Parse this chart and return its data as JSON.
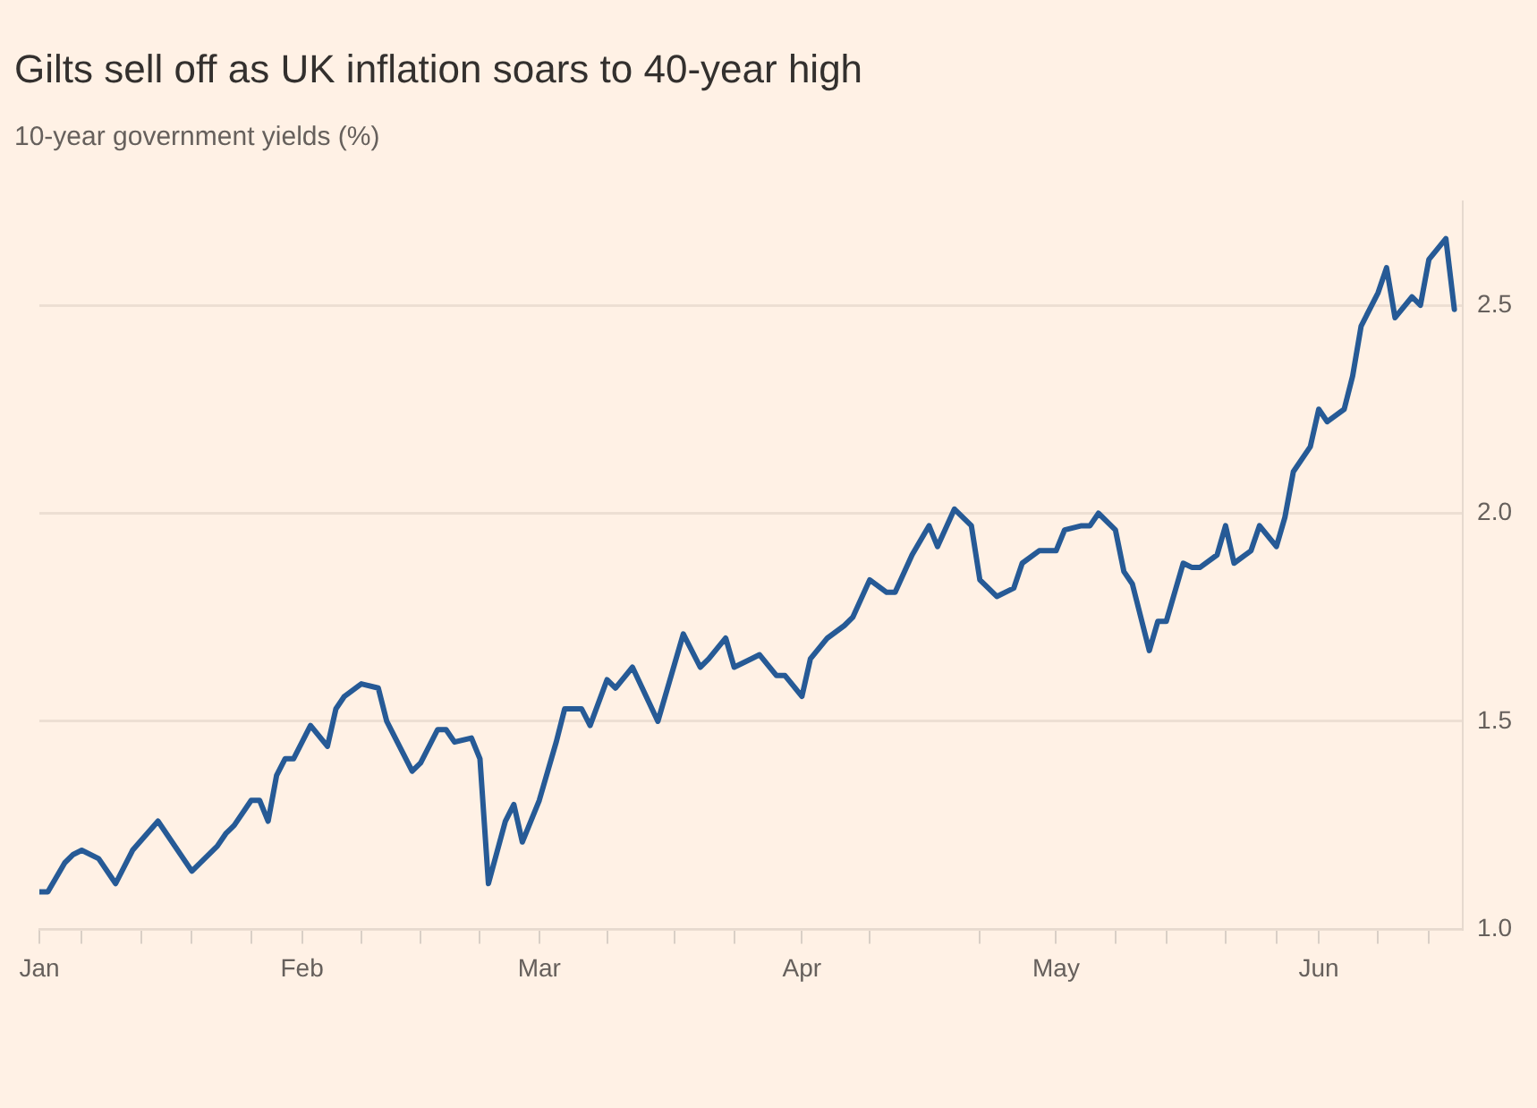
{
  "chart_data": {
    "type": "line",
    "title": "Gilts sell off as UK inflation soars to 40-year high",
    "subtitle": "10-year government yields (%)",
    "xlim": [
      "--01-01",
      "--06-18"
    ],
    "xticks": [
      {
        "value": "--01-01",
        "label": "Jan"
      },
      {
        "value": "--01-06",
        "label": null
      },
      {
        "value": "--01-13",
        "label": null
      },
      {
        "value": "--01-19",
        "label": null
      },
      {
        "value": "--01-26",
        "label": null
      },
      {
        "value": "--02-01",
        "label": "Feb"
      },
      {
        "value": "--02-08",
        "label": null
      },
      {
        "value": "--02-15",
        "label": null
      },
      {
        "value": "--02-22",
        "label": null
      },
      {
        "value": "--03-01",
        "label": "Mar"
      },
      {
        "value": "--03-09",
        "label": null
      },
      {
        "value": "--03-17",
        "label": null
      },
      {
        "value": "--03-24",
        "label": null
      },
      {
        "value": "--04-01",
        "label": "Apr"
      },
      {
        "value": "--04-09",
        "label": null
      },
      {
        "value": "--04-22",
        "label": null
      },
      {
        "value": "--05-01",
        "label": "May"
      },
      {
        "value": "--05-08",
        "label": null
      },
      {
        "value": "--05-14",
        "label": null
      },
      {
        "value": "--05-21",
        "label": null
      },
      {
        "value": "--05-27",
        "label": null
      },
      {
        "value": "--06-01",
        "label": "Jun"
      },
      {
        "value": "--06-08",
        "label": null
      },
      {
        "value": "--06-14",
        "label": null
      }
    ],
    "yticks": [
      {
        "value": 1.0,
        "label": "1.0"
      },
      {
        "value": 1.5,
        "label": "1.5"
      },
      {
        "value": 2.0,
        "label": "2.0"
      },
      {
        "value": 2.5,
        "label": "2.5"
      }
    ],
    "ylim": [
      1.0,
      2.75
    ],
    "grid": "y",
    "marker": "none",
    "line_style": "solid",
    "x": [
      "--01-01",
      "--01-02",
      "--01-04",
      "--01-05",
      "--01-06",
      "--01-08",
      "--01-10",
      "--01-12",
      "--01-15",
      "--01-16",
      "--01-19",
      "--01-22",
      "--01-23",
      "--01-24",
      "--01-26",
      "--01-27",
      "--01-28",
      "--01-29",
      "--01-30",
      "--01-31",
      "--02-02",
      "--02-04",
      "--02-05",
      "--02-06",
      "--02-08",
      "--02-10",
      "--02-11",
      "--02-14",
      "--02-15",
      "--02-17",
      "--02-18",
      "--02-19",
      "--02-21",
      "--02-22",
      "--02-23",
      "--02-25",
      "--02-26",
      "--02-27",
      "--03-01",
      "--03-03",
      "--03-04",
      "--03-06",
      "--03-07",
      "--03-09",
      "--03-10",
      "--03-12",
      "--03-15",
      "--03-17",
      "--03-18",
      "--03-20",
      "--03-21",
      "--03-23",
      "--03-24",
      "--03-26",
      "--03-27",
      "--03-29",
      "--03-30",
      "--04-01",
      "--04-02",
      "--04-04",
      "--04-06",
      "--04-07",
      "--04-09",
      "--04-11",
      "--04-12",
      "--04-14",
      "--04-16",
      "--04-17",
      "--04-19",
      "--04-21",
      "--04-22",
      "--04-24",
      "--04-26",
      "--04-27",
      "--04-29",
      "--05-01",
      "--05-02",
      "--05-04",
      "--05-05",
      "--05-06",
      "--05-08",
      "--05-09",
      "--05-10",
      "--05-12",
      "--05-13",
      "--05-14",
      "--05-16",
      "--05-17",
      "--05-18",
      "--05-20",
      "--05-21",
      "--05-22",
      "--05-24",
      "--05-25",
      "--05-27",
      "--05-28",
      "--05-29",
      "--05-31",
      "--06-01",
      "--06-02",
      "--06-04",
      "--06-05",
      "--06-06",
      "--06-08",
      "--06-09",
      "--06-10",
      "--06-12",
      "--06-13",
      "--06-14",
      "--06-16",
      "--06-17"
    ],
    "series": [
      {
        "color": "#265a96",
        "values": [
          1.09,
          1.09,
          1.16,
          1.18,
          1.19,
          1.17,
          1.11,
          1.19,
          1.26,
          1.23,
          1.14,
          1.2,
          1.23,
          1.25,
          1.31,
          1.31,
          1.26,
          1.37,
          1.41,
          1.41,
          1.49,
          1.44,
          1.53,
          1.56,
          1.59,
          1.58,
          1.5,
          1.38,
          1.4,
          1.48,
          1.48,
          1.45,
          1.46,
          1.41,
          1.11,
          1.26,
          1.3,
          1.21,
          1.31,
          1.45,
          1.53,
          1.53,
          1.49,
          1.6,
          1.58,
          1.63,
          1.5,
          1.64,
          1.71,
          1.63,
          1.65,
          1.7,
          1.63,
          1.65,
          1.66,
          1.61,
          1.61,
          1.56,
          1.65,
          1.7,
          1.73,
          1.75,
          1.84,
          1.81,
          1.81,
          1.9,
          1.97,
          1.92,
          2.01,
          1.97,
          1.84,
          1.8,
          1.82,
          1.88,
          1.91,
          1.91,
          1.96,
          1.97,
          1.97,
          2.0,
          1.96,
          1.86,
          1.83,
          1.67,
          1.74,
          1.74,
          1.88,
          1.87,
          1.87,
          1.9,
          1.97,
          1.88,
          1.91,
          1.97,
          1.92,
          1.99,
          2.1,
          2.16,
          2.25,
          2.22,
          2.25,
          2.33,
          2.45,
          2.53,
          2.59,
          2.47,
          2.52,
          2.5,
          2.61,
          2.66,
          2.49
        ]
      }
    ]
  }
}
